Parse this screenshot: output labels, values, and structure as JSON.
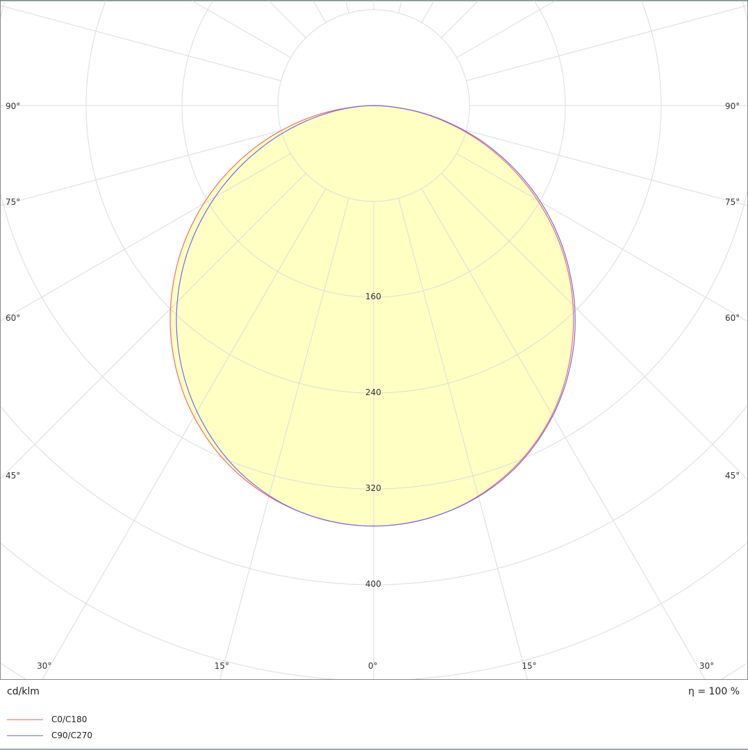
{
  "chart_data": {
    "type": "polar",
    "unit_label": "cd/klm",
    "efficiency_label": "η = 100 %",
    "radial_ticks": [
      80,
      160,
      240,
      320,
      400,
      480,
      560,
      640
    ],
    "radial_tick_labels": [
      "160",
      "240",
      "320",
      "400"
    ],
    "radial_labeled_values": [
      160,
      240,
      320,
      400
    ],
    "angle_ticks": [
      -90,
      -75,
      -60,
      -45,
      -30,
      -15,
      0,
      15,
      30,
      45,
      60,
      75,
      90
    ],
    "angle_tick_labels": [
      "90°",
      "75°",
      "60°",
      "45°",
      "30°",
      "15°",
      "0°",
      "15°",
      "30°",
      "45°",
      "60°",
      "75°",
      "90°"
    ],
    "grid": true,
    "legend_position": "bottom-left",
    "angles": [
      -90,
      -80,
      -70,
      -60,
      -50,
      -40,
      -30,
      -20,
      -10,
      0,
      10,
      20,
      30,
      40,
      50,
      60,
      70,
      80,
      90
    ],
    "series": [
      {
        "name": "C0/C180",
        "color": "#ff6a5a",
        "values": [
          0,
          51,
          108,
          164,
          216,
          262,
          300,
          328,
          345,
          351,
          345,
          327,
          298,
          258,
          211,
          158,
          102,
          47,
          0
        ]
      },
      {
        "name": "C90/C270",
        "color": "#6a6aff",
        "values": [
          0,
          43,
          97,
          153,
          207,
          255,
          295,
          326,
          345,
          351,
          345,
          328,
          299,
          260,
          213,
          161,
          105,
          49,
          0
        ]
      }
    ],
    "fill_color": "#ffffc4"
  }
}
